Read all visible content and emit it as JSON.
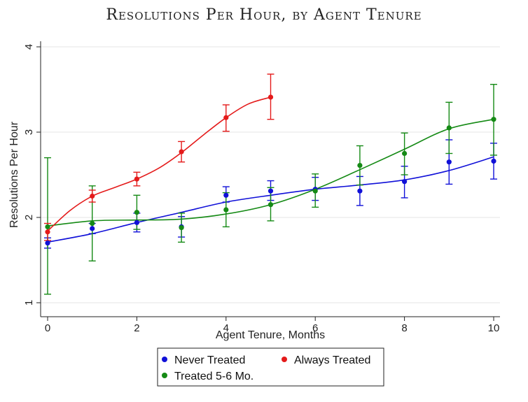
{
  "chart_data": {
    "type": "scatter",
    "title": "Resolutions Per Hour, by Agent Tenure",
    "xlabel": "Agent Tenure, Months",
    "ylabel": "Resolutions Per Hour",
    "xlim": [
      0,
      10
    ],
    "ylim": [
      1,
      4
    ],
    "xticks": [
      "0",
      "2",
      "4",
      "6",
      "8",
      "10"
    ],
    "yticks": [
      "1",
      "2",
      "3",
      "4"
    ],
    "grid": true,
    "legend_position": "bottom",
    "series": [
      {
        "name": "Never Treated",
        "color": "#1010d8",
        "x": [
          0,
          1,
          2,
          3,
          4,
          5,
          6,
          7,
          8,
          9,
          10
        ],
        "y": [
          1.7,
          1.87,
          1.94,
          1.89,
          2.26,
          2.31,
          2.33,
          2.31,
          2.42,
          2.65,
          2.66
        ],
        "ci_low": [
          1.64,
          1.81,
          1.83,
          1.77,
          2.18,
          2.2,
          2.2,
          2.14,
          2.23,
          2.39,
          2.45
        ],
        "ci_high": [
          1.76,
          1.93,
          2.05,
          2.01,
          2.36,
          2.43,
          2.47,
          2.48,
          2.6,
          2.91,
          2.87
        ],
        "fit": [
          [
            0,
            1.71
          ],
          [
            1,
            1.81
          ],
          [
            2,
            1.94
          ],
          [
            3,
            2.06
          ],
          [
            4,
            2.18
          ],
          [
            5,
            2.26
          ],
          [
            6,
            2.33
          ],
          [
            7,
            2.38
          ],
          [
            8,
            2.44
          ],
          [
            9,
            2.55
          ],
          [
            10,
            2.71
          ]
        ]
      },
      {
        "name": "Always Treated",
        "color": "#e41a1a",
        "x": [
          0,
          1,
          2,
          3,
          4,
          5
        ],
        "y": [
          1.83,
          2.25,
          2.45,
          2.77,
          3.17,
          3.41
        ],
        "ci_low": [
          1.73,
          2.18,
          2.37,
          2.65,
          3.01,
          3.15
        ],
        "ci_high": [
          1.93,
          2.32,
          2.53,
          2.89,
          3.32,
          3.68
        ],
        "fit": [
          [
            0,
            1.84
          ],
          [
            0.5,
            2.08
          ],
          [
            1,
            2.25
          ],
          [
            1.5,
            2.35
          ],
          [
            2,
            2.45
          ],
          [
            2.5,
            2.58
          ],
          [
            3,
            2.76
          ],
          [
            3.5,
            2.97
          ],
          [
            4,
            3.17
          ],
          [
            4.5,
            3.33
          ],
          [
            5,
            3.41
          ]
        ]
      },
      {
        "name": "Treated 5-6 Mo.",
        "color": "#158a15",
        "x": [
          0,
          1,
          2,
          3,
          4,
          5,
          6,
          7,
          8,
          9,
          10
        ],
        "y": [
          1.89,
          1.93,
          2.06,
          1.88,
          2.09,
          2.15,
          2.31,
          2.61,
          2.75,
          3.05,
          3.15
        ],
        "ci_low": [
          1.1,
          1.49,
          1.86,
          1.71,
          1.89,
          1.96,
          2.12,
          2.38,
          2.5,
          2.75,
          2.73
        ],
        "ci_high": [
          2.7,
          2.37,
          2.26,
          2.05,
          2.29,
          2.35,
          2.51,
          2.84,
          2.99,
          3.35,
          3.56
        ],
        "fit": [
          [
            0,
            1.9
          ],
          [
            1,
            1.96
          ],
          [
            2,
            1.97
          ],
          [
            3,
            1.98
          ],
          [
            4,
            2.04
          ],
          [
            5,
            2.15
          ],
          [
            6,
            2.33
          ],
          [
            7,
            2.56
          ],
          [
            8,
            2.8
          ],
          [
            9,
            3.04
          ],
          [
            10,
            3.15
          ]
        ]
      }
    ]
  }
}
